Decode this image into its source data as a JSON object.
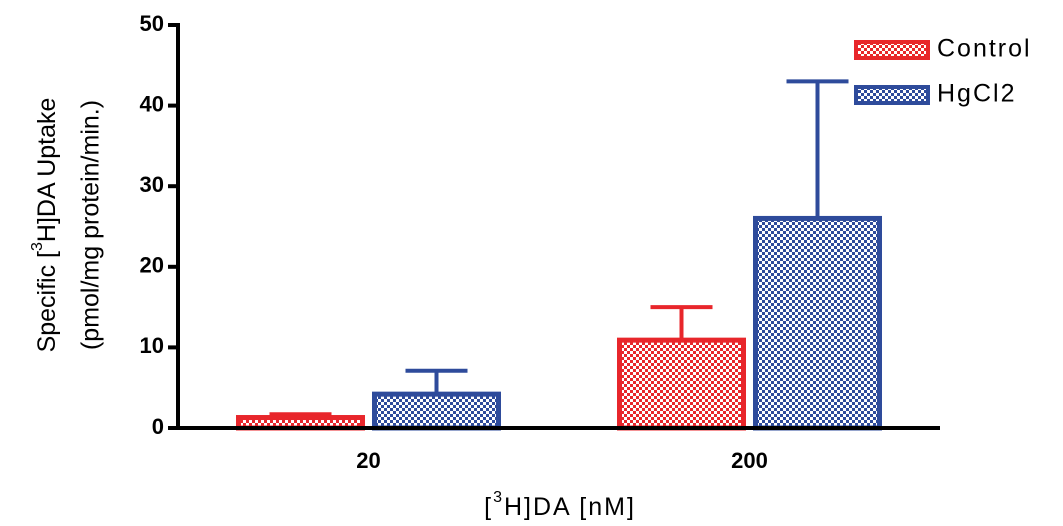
{
  "chart_data": {
    "type": "bar",
    "y_label_line1": [
      "Specific [",
      "3",
      "H]DA Uptake"
    ],
    "y_label_line2": "(pmol/mg protein/min.)",
    "x_label": [
      "[",
      "3",
      "H]DA  [nM]"
    ],
    "categories": [
      "20",
      "200"
    ],
    "series": [
      {
        "name": "Control",
        "color": "#e8262b",
        "values": [
          1.3,
          10.9
        ],
        "errors": [
          0.4,
          4.1
        ]
      },
      {
        "name": "HgCl2",
        "color": "#2e4b9b",
        "values": [
          4.2,
          26
        ],
        "errors": [
          2.9,
          17
        ]
      }
    ],
    "ylim": [
      0,
      50
    ],
    "yticks": [
      0,
      10,
      20,
      30,
      40,
      50
    ],
    "legend": "upper right"
  }
}
